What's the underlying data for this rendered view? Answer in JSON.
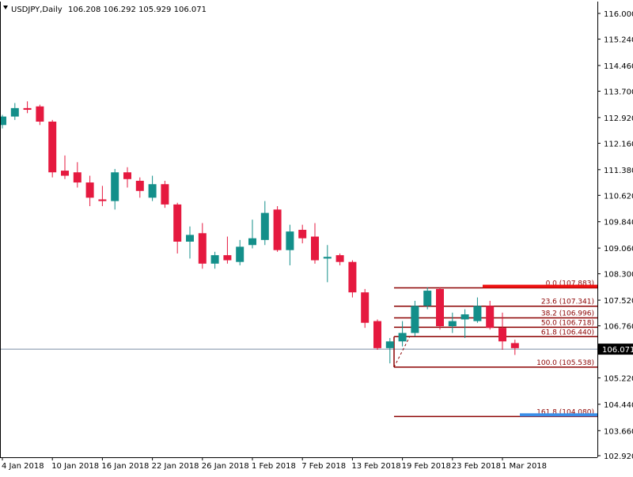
{
  "header": {
    "symbol": "USDJPY,Daily",
    "ohlc": "106.208 106.292 105.929 106.071"
  },
  "chart_data": {
    "type": "candlestick",
    "symbol": "USDJPY",
    "timeframe": "Daily",
    "ylim": [
      102.92,
      116.15
    ],
    "y_ticks": [
      "116.000",
      "115.240",
      "114.460",
      "113.700",
      "112.920",
      "112.160",
      "111.380",
      "110.620",
      "109.840",
      "109.060",
      "108.300",
      "107.520",
      "106.760",
      "106.071",
      "105.220",
      "104.440",
      "103.660",
      "102.920"
    ],
    "x_ticks": [
      "4 Jan 2018",
      "10 Jan 2018",
      "16 Jan 2018",
      "22 Jan 2018",
      "26 Jan 2018",
      "1 Feb 2018",
      "7 Feb 2018",
      "13 Feb 2018",
      "19 Feb 2018",
      "23 Feb 2018",
      "1 Mar 2018"
    ],
    "current_price": 106.071,
    "current_price_label": "106.071",
    "colors": {
      "bull": "#138f8a",
      "bear": "#e5193f",
      "fib": "#8b0000",
      "price_line": "#7a8ea5",
      "red_bar": "#ee1111",
      "blue_bar": "#3b8ee8"
    },
    "candles": [
      {
        "o": 112.7,
        "h": 113.0,
        "l": 112.6,
        "c": 112.95
      },
      {
        "o": 112.95,
        "h": 113.35,
        "l": 112.85,
        "c": 113.2
      },
      {
        "o": 113.2,
        "h": 113.4,
        "l": 113.05,
        "c": 113.15
      },
      {
        "o": 113.25,
        "h": 113.3,
        "l": 112.7,
        "c": 112.8
      },
      {
        "o": 112.8,
        "h": 112.85,
        "l": 111.15,
        "c": 111.3
      },
      {
        "o": 111.35,
        "h": 111.8,
        "l": 111.1,
        "c": 111.2
      },
      {
        "o": 111.3,
        "h": 111.6,
        "l": 110.85,
        "c": 111.0
      },
      {
        "o": 111.0,
        "h": 111.2,
        "l": 110.3,
        "c": 110.55
      },
      {
        "o": 110.5,
        "h": 110.9,
        "l": 110.3,
        "c": 110.45
      },
      {
        "o": 110.45,
        "h": 111.4,
        "l": 110.2,
        "c": 111.3
      },
      {
        "o": 111.3,
        "h": 111.45,
        "l": 110.85,
        "c": 111.1
      },
      {
        "o": 111.05,
        "h": 111.15,
        "l": 110.55,
        "c": 110.75
      },
      {
        "o": 110.55,
        "h": 111.2,
        "l": 110.45,
        "c": 110.95
      },
      {
        "o": 110.95,
        "h": 111.05,
        "l": 110.25,
        "c": 110.35
      },
      {
        "o": 110.35,
        "h": 110.4,
        "l": 108.9,
        "c": 109.25
      },
      {
        "o": 109.25,
        "h": 109.7,
        "l": 108.75,
        "c": 109.45
      },
      {
        "o": 109.5,
        "h": 109.8,
        "l": 108.45,
        "c": 108.6
      },
      {
        "o": 108.6,
        "h": 108.95,
        "l": 108.45,
        "c": 108.85
      },
      {
        "o": 108.85,
        "h": 109.4,
        "l": 108.6,
        "c": 108.7
      },
      {
        "o": 108.65,
        "h": 109.3,
        "l": 108.55,
        "c": 109.1
      },
      {
        "o": 109.15,
        "h": 109.9,
        "l": 109.05,
        "c": 109.35
      },
      {
        "o": 109.3,
        "h": 110.45,
        "l": 109.15,
        "c": 110.1
      },
      {
        "o": 110.2,
        "h": 110.3,
        "l": 108.95,
        "c": 109.0
      },
      {
        "o": 109.0,
        "h": 109.75,
        "l": 108.55,
        "c": 109.55
      },
      {
        "o": 109.6,
        "h": 109.75,
        "l": 109.2,
        "c": 109.35
      },
      {
        "o": 109.4,
        "h": 109.8,
        "l": 108.6,
        "c": 108.7
      },
      {
        "o": 108.75,
        "h": 109.15,
        "l": 108.05,
        "c": 108.8
      },
      {
        "o": 108.85,
        "h": 108.9,
        "l": 108.55,
        "c": 108.65
      },
      {
        "o": 108.65,
        "h": 108.7,
        "l": 107.6,
        "c": 107.75
      },
      {
        "o": 107.75,
        "h": 107.85,
        "l": 106.7,
        "c": 106.85
      },
      {
        "o": 106.9,
        "h": 106.95,
        "l": 106.05,
        "c": 106.1
      },
      {
        "o": 106.1,
        "h": 106.4,
        "l": 105.65,
        "c": 106.3
      },
      {
        "o": 106.3,
        "h": 106.9,
        "l": 106.15,
        "c": 106.55
      },
      {
        "o": 106.55,
        "h": 107.5,
        "l": 106.45,
        "c": 107.35
      },
      {
        "o": 107.35,
        "h": 107.9,
        "l": 107.25,
        "c": 107.8
      },
      {
        "o": 107.85,
        "h": 107.9,
        "l": 106.65,
        "c": 106.75
      },
      {
        "o": 106.75,
        "h": 107.15,
        "l": 106.55,
        "c": 106.9
      },
      {
        "o": 106.95,
        "h": 107.25,
        "l": 106.4,
        "c": 107.1
      },
      {
        "o": 106.9,
        "h": 107.6,
        "l": 106.85,
        "c": 107.35
      },
      {
        "o": 107.35,
        "h": 107.5,
        "l": 106.65,
        "c": 106.7
      },
      {
        "o": 106.7,
        "h": 107.15,
        "l": 106.05,
        "c": 106.3
      },
      {
        "o": 106.25,
        "h": 106.35,
        "l": 105.9,
        "c": 106.1
      }
    ],
    "fibonacci": {
      "levels": [
        {
          "ratio": "0.0",
          "price": 107.883,
          "label": "0.0 (107.883)"
        },
        {
          "ratio": "23.6",
          "price": 107.341,
          "label": "23.6 (107.341)"
        },
        {
          "ratio": "38.2",
          "price": 106.996,
          "label": "38.2 (106.996)"
        },
        {
          "ratio": "50.0",
          "price": 106.718,
          "label": "50.0 (106.718)"
        },
        {
          "ratio": "61.8",
          "price": 106.44,
          "label": "61.8 (106.440)"
        },
        {
          "ratio": "100.0",
          "price": 105.538,
          "label": "100.0 (105.538)"
        },
        {
          "ratio": "161.8",
          "price": 104.08,
          "label": "161.8 (104.080)"
        }
      ],
      "anchor_low": 105.538,
      "anchor_high": 107.883
    }
  }
}
